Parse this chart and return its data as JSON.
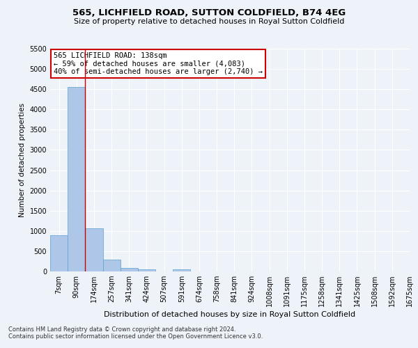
{
  "title": "565, LICHFIELD ROAD, SUTTON COLDFIELD, B74 4EG",
  "subtitle": "Size of property relative to detached houses in Royal Sutton Coldfield",
  "xlabel": "Distribution of detached houses by size in Royal Sutton Coldfield",
  "ylabel": "Number of detached properties",
  "footnote1": "Contains HM Land Registry data © Crown copyright and database right 2024.",
  "footnote2": "Contains public sector information licensed under the Open Government Licence v3.0.",
  "annotation_line1": "565 LICHFIELD ROAD: 138sqm",
  "annotation_line2": "← 59% of detached houses are smaller (4,083)",
  "annotation_line3": "40% of semi-detached houses are larger (2,740) →",
  "bar_color": "#aec6e8",
  "bar_edge_color": "#5a9fd4",
  "vline_color": "#cc0000",
  "ylim": [
    0,
    5500
  ],
  "yticks": [
    0,
    500,
    1000,
    1500,
    2000,
    2500,
    3000,
    3500,
    4000,
    4500,
    5000,
    5500
  ],
  "bins": [
    "7sqm",
    "90sqm",
    "174sqm",
    "257sqm",
    "341sqm",
    "424sqm",
    "507sqm",
    "591sqm",
    "674sqm",
    "758sqm",
    "841sqm",
    "924sqm",
    "1008sqm",
    "1091sqm",
    "1175sqm",
    "1258sqm",
    "1341sqm",
    "1425sqm",
    "1508sqm",
    "1592sqm",
    "1675sqm"
  ],
  "values": [
    900,
    4560,
    1070,
    290,
    80,
    60,
    0,
    60,
    0,
    0,
    0,
    0,
    0,
    0,
    0,
    0,
    0,
    0,
    0,
    0
  ],
  "background_color": "#eef2f9",
  "grid_color": "#ffffff",
  "annotation_box_color": "#ffffff",
  "annotation_box_edge": "#cc0000",
  "title_fontsize": 9.5,
  "subtitle_fontsize": 8,
  "ylabel_fontsize": 7.5,
  "xlabel_fontsize": 8,
  "tick_fontsize": 7,
  "footnote_fontsize": 6
}
